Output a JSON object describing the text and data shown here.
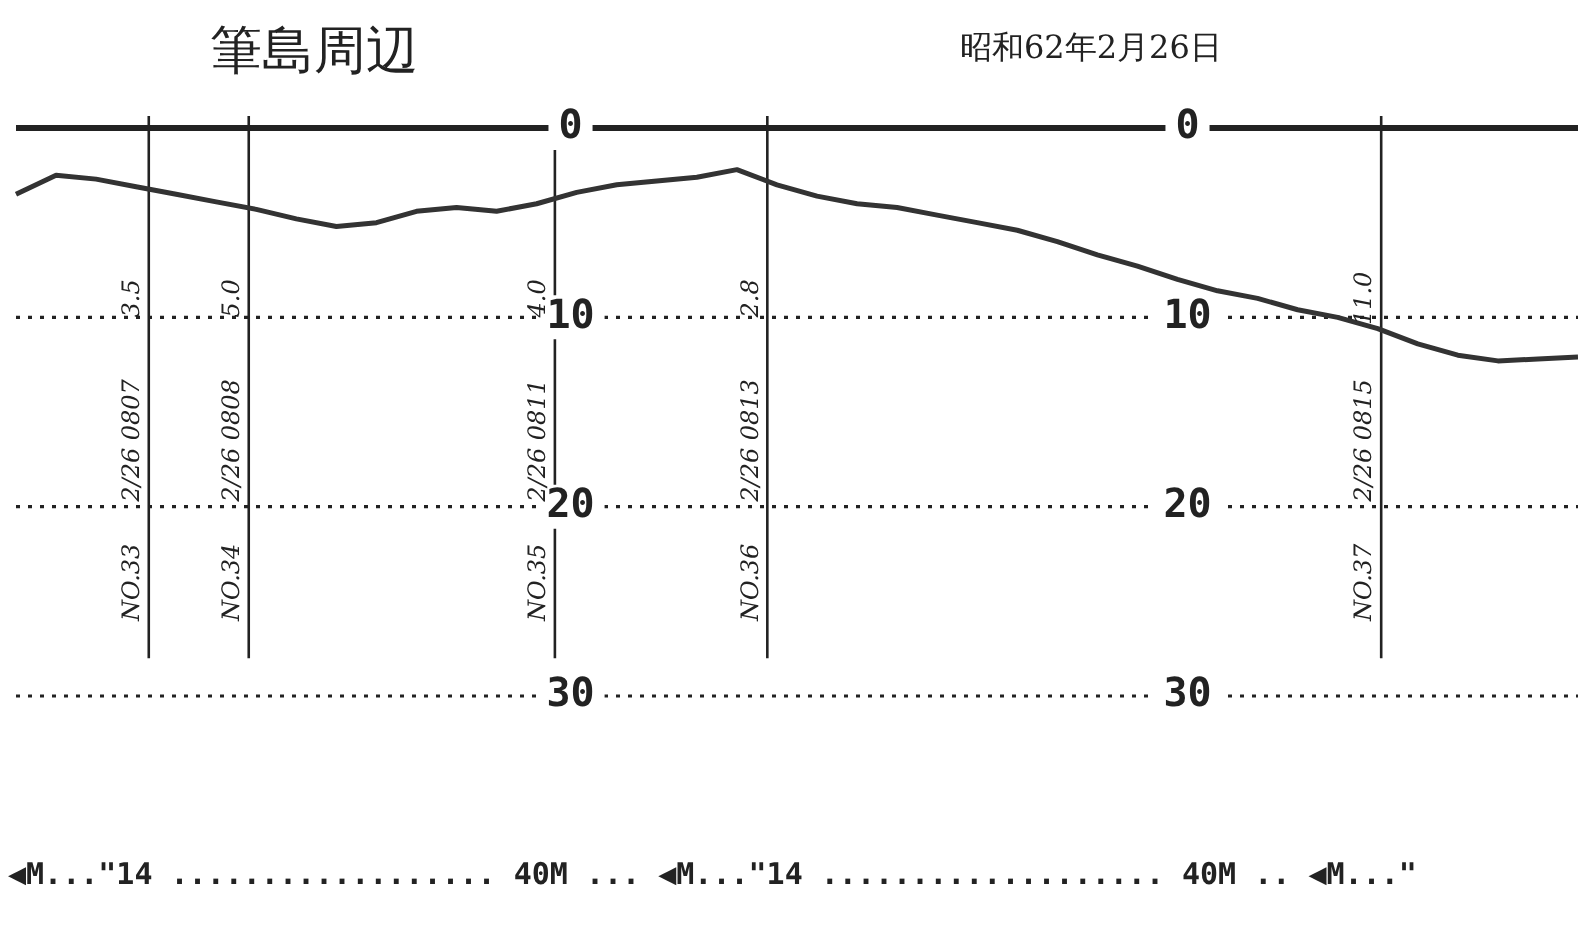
{
  "chart_data": {
    "type": "line",
    "title": "筆島周辺",
    "subtitle": "昭和62年2月26日",
    "categories": [
      null,
      null,
      null,
      null,
      null,
      null,
      null,
      null,
      null,
      null,
      null,
      null,
      null,
      null,
      null,
      null,
      null,
      null,
      null,
      null,
      null,
      null,
      null,
      null,
      null,
      null,
      null,
      null,
      null,
      null,
      null,
      null,
      null,
      null,
      null,
      null,
      null,
      null,
      null,
      null
    ],
    "series": [
      {
        "color": "#333333",
        "values": [
          3.5,
          2.5,
          2.7,
          3.1,
          3.5,
          3.9,
          4.3,
          4.8,
          5.2,
          5.0,
          4.4,
          4.2,
          4.4,
          4.0,
          3.4,
          3.0,
          2.8,
          2.6,
          2.2,
          3.0,
          3.6,
          4.0,
          4.2,
          4.6,
          5.0,
          5.4,
          6.0,
          6.7,
          7.3,
          8.0,
          8.6,
          9.0,
          9.6,
          10.0,
          10.6,
          11.4,
          12.0,
          12.3,
          12.2,
          12.1
        ]
      }
    ],
    "ylim": [
      30,
      0
    ],
    "yticks": [
      0,
      10,
      20,
      30
    ],
    "y2lim": [
      30,
      0
    ],
    "y2ticks": [
      0,
      10,
      20,
      30
    ],
    "grid": "y",
    "marker": "none",
    "line_style": "solid",
    "legend": false,
    "annotations": [
      "NO.33",
      "3.5",
      "2/26 0807",
      "NO.34",
      "5.0",
      "2/26 0808",
      "NO.35",
      "4.0",
      "2/26 0811",
      "NO.36",
      "2.8",
      "2/26 0813",
      "NO.37",
      "11.0",
      "2/26 0815",
      "◀M...\"14 .................. 40M ... ◀M...\"14 ................... 40M .. ◀M...\""
    ]
  }
}
